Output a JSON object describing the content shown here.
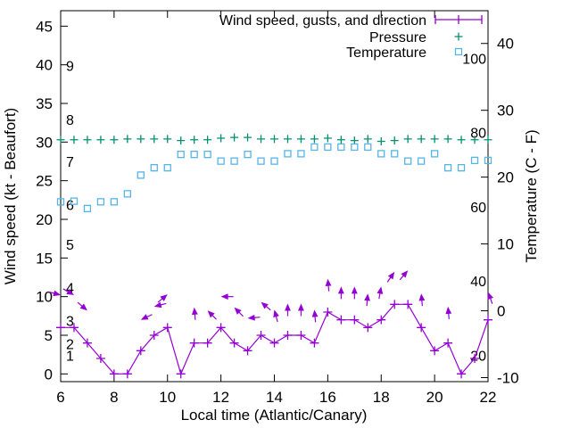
{
  "chart_data": {
    "type": "line",
    "title": "",
    "xlabel": "Local time (Atlantic/Canary)",
    "ylabel_left": "Wind speed (kt - Beaufort)",
    "ylabel_right": "Temperature (C - F)",
    "grid": false,
    "legend_position": "top-right-inside",
    "x_range": [
      6,
      22
    ],
    "y_left_range": [
      -1,
      47
    ],
    "y_right_range": [
      -10.6,
      44.9
    ],
    "x_ticks": [
      6,
      8,
      10,
      12,
      14,
      16,
      18,
      20,
      22
    ],
    "y_left_ticks": [
      0,
      5,
      10,
      15,
      20,
      25,
      30,
      35,
      40,
      45
    ],
    "y_right_ticks": [
      -10,
      0,
      10,
      20,
      30,
      40
    ],
    "beaufort_labels": [
      {
        "label": "1",
        "kt": 2.4
      },
      {
        "label": "2",
        "kt": 3.9
      },
      {
        "label": "3",
        "kt": 6.9
      },
      {
        "label": "4",
        "kt": 11.2
      },
      {
        "label": "5",
        "kt": 16.75
      },
      {
        "label": "6",
        "kt": 21.9
      },
      {
        "label": "7",
        "kt": 27.5
      },
      {
        "label": "8",
        "kt": 32.9
      },
      {
        "label": "9",
        "kt": 39.9
      }
    ],
    "fahrenheit_labels": [
      {
        "label": "20",
        "f": 20
      },
      {
        "label": "40",
        "f": 40
      },
      {
        "label": "60",
        "f": 60
      },
      {
        "label": "80",
        "f": 80
      },
      {
        "label": "100",
        "f": 100
      }
    ],
    "x": [
      6,
      6.5,
      7,
      7.5,
      8,
      8.5,
      9,
      9.5,
      10,
      10.5,
      11,
      11.5,
      12,
      12.5,
      13,
      13.5,
      14,
      14.5,
      15,
      15.5,
      16,
      16.5,
      17,
      17.5,
      18,
      18.5,
      19,
      19.5,
      20,
      20.5,
      21,
      21.5,
      22
    ],
    "series": [
      {
        "name": "Wind speed, gusts, and direction",
        "type": "line+marker",
        "marker": "plus",
        "axis": "left",
        "color": "#9400d3",
        "values": [
          6,
          6,
          4,
          2,
          0,
          0,
          3,
          5,
          6,
          0,
          4,
          4,
          6,
          4,
          3,
          5,
          4,
          5,
          5,
          4,
          8,
          7,
          7,
          6,
          7,
          9,
          9,
          6,
          3,
          4,
          0,
          2,
          7
        ]
      },
      {
        "name": "Pressure",
        "type": "marker",
        "marker": "plus",
        "axis": "left",
        "color": "#008f70",
        "values": [
          30.3,
          30.3,
          30.3,
          30.3,
          30.3,
          30.4,
          30.4,
          30.4,
          30.4,
          30.2,
          30.3,
          30.3,
          30.5,
          30.6,
          30.6,
          30.4,
          30.4,
          30.4,
          30.4,
          30.4,
          30.5,
          30.3,
          30.2,
          30.4,
          30.1,
          30.2,
          30.4,
          30.4,
          30.4,
          30.4,
          30.3,
          30.3,
          30.3
        ]
      },
      {
        "name": "Temperature",
        "type": "marker",
        "marker": "square-open",
        "axis": "right",
        "color": "#56b4e9",
        "values": [
          16.3,
          16.4,
          15.3,
          16.3,
          16.3,
          17.5,
          20.3,
          21.4,
          21.4,
          23.4,
          23.4,
          23.4,
          22.4,
          22.4,
          23.4,
          22.4,
          22.4,
          23.5,
          23.5,
          24.5,
          24.5,
          24.5,
          24.5,
          24.5,
          23.5,
          23.5,
          22.4,
          22.4,
          23.5,
          21.4,
          21.4,
          22.5,
          22.5
        ]
      }
    ],
    "wind_direction_arrows": [
      {
        "hour": 6.0,
        "kt": 10.2,
        "angle_deg": -15
      },
      {
        "hour": 6.5,
        "kt": 10.2,
        "angle_deg": -30
      },
      {
        "hour": 7.0,
        "kt": 8.2,
        "angle_deg": -40
      },
      {
        "hour": 9.0,
        "kt": 7.0,
        "angle_deg": 205
      },
      {
        "hour": 9.5,
        "kt": 8.7,
        "angle_deg": 195
      },
      {
        "hour": 10.0,
        "kt": 10.3,
        "angle_deg": 40
      },
      {
        "hour": 11.0,
        "kt": 8.6,
        "angle_deg": 95
      },
      {
        "hour": 11.5,
        "kt": 8.2,
        "angle_deg": 135
      },
      {
        "hour": 12.0,
        "kt": 10.0,
        "angle_deg": 180
      },
      {
        "hour": 12.5,
        "kt": 8.6,
        "angle_deg": 135
      },
      {
        "hour": 13.0,
        "kt": 7.2,
        "angle_deg": 185
      },
      {
        "hour": 13.5,
        "kt": 9.3,
        "angle_deg": 140
      },
      {
        "hour": 14.0,
        "kt": 8.3,
        "angle_deg": 105
      },
      {
        "hour": 14.5,
        "kt": 9.1,
        "angle_deg": 90
      },
      {
        "hour": 15.0,
        "kt": 9.1,
        "angle_deg": 90
      },
      {
        "hour": 15.5,
        "kt": 8.3,
        "angle_deg": 95
      },
      {
        "hour": 16.0,
        "kt": 12.3,
        "angle_deg": 95
      },
      {
        "hour": 16.5,
        "kt": 11.3,
        "angle_deg": 90
      },
      {
        "hour": 17.0,
        "kt": 11.3,
        "angle_deg": 90
      },
      {
        "hour": 17.5,
        "kt": 10.4,
        "angle_deg": 85
      },
      {
        "hour": 18.0,
        "kt": 11.3,
        "angle_deg": 80
      },
      {
        "hour": 18.5,
        "kt": 13.2,
        "angle_deg": 55
      },
      {
        "hour": 19.0,
        "kt": 13.4,
        "angle_deg": 50
      },
      {
        "hour": 19.5,
        "kt": 10.4,
        "angle_deg": 95
      },
      {
        "hour": 20.5,
        "kt": 8.7,
        "angle_deg": 95
      },
      {
        "hour": 22.0,
        "kt": 10.6,
        "angle_deg": 110
      }
    ],
    "axis_color": "#000000"
  }
}
